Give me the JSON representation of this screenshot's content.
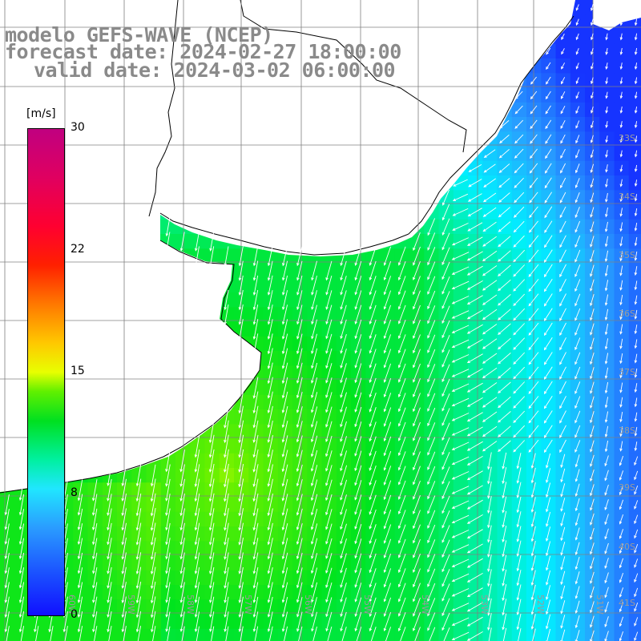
{
  "title": {
    "line1": "modelo GEFS-WAVE (NCEP)",
    "line2": "forecast date: 2024-02-27 18:00:00",
    "line3": "valid date: 2024-03-02 06:00:00"
  },
  "colorbar": {
    "unit": "[m/s]",
    "ticks": [
      {
        "value": 30,
        "label": "30"
      },
      {
        "value": 22,
        "label": "22"
      },
      {
        "value": 15,
        "label": "15"
      },
      {
        "value": 8,
        "label": "8"
      },
      {
        "value": 0,
        "label": "0"
      }
    ],
    "range": [
      0,
      30
    ]
  },
  "map": {
    "lat_labels": [
      "33S",
      "34S",
      "35S",
      "36S",
      "37S",
      "38S",
      "39S",
      "40S",
      "41S"
    ],
    "lon_labels": [
      "60W",
      "59W",
      "58W",
      "57W",
      "56W",
      "55W",
      "54W",
      "53W",
      "52W",
      "51W"
    ],
    "lon_range": [
      -61,
      -50.5
    ],
    "lat_range": [
      -41.5,
      -31.5
    ],
    "land_color": "#ffffff",
    "grid_color": "#808080",
    "coast_color": "#000000"
  }
}
